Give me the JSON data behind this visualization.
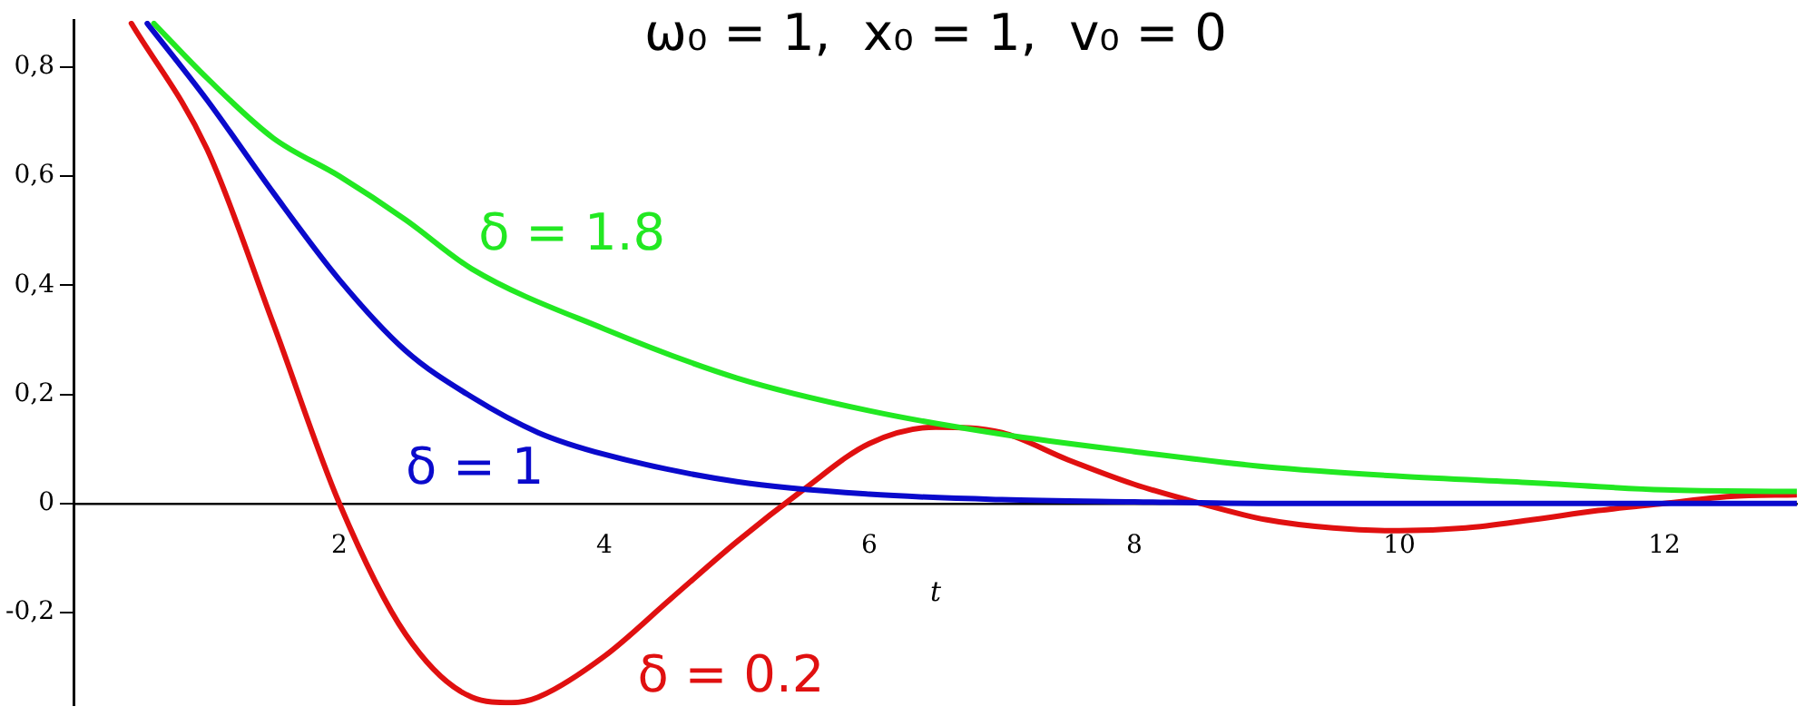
{
  "chart_data": {
    "type": "line",
    "title": "ω₀ = 1,  x₀ = 1,  v₀ = 0",
    "xlabel": "t",
    "xlim": [
      0,
      13
    ],
    "xticks": [
      2,
      4,
      6,
      8,
      10,
      12
    ],
    "ylim": [
      -0.37,
      0.885
    ],
    "yticks": [
      {
        "value": -0.2,
        "label": "-0,2"
      },
      {
        "value": 0,
        "label": "0"
      },
      {
        "value": 0.2,
        "label": "0,2"
      },
      {
        "value": 0.4,
        "label": "0,4"
      },
      {
        "value": 0.6,
        "label": "0,6"
      },
      {
        "value": 0.8,
        "label": "0,8"
      }
    ],
    "grid": false,
    "legend": false,
    "marker": "none",
    "line_style": "solid",
    "series": [
      {
        "name": "δ = 1.8",
        "color": "#22e822",
        "x": [
          0.6,
          1,
          1.5,
          2,
          2.5,
          3,
          4,
          5,
          6,
          7,
          8,
          9,
          10,
          11,
          12,
          13
        ],
        "values": [
          0.88,
          0.78,
          0.67,
          0.6,
          0.52,
          0.43,
          0.32,
          0.23,
          0.17,
          0.127,
          0.095,
          0.067,
          0.05,
          0.038,
          0.025,
          0.022
        ]
      },
      {
        "name": "δ = 1",
        "color": "#0a0acc",
        "x": [
          0.55,
          1,
          1.5,
          2,
          2.5,
          3,
          3.5,
          4,
          5,
          6,
          7,
          8,
          9,
          10,
          11,
          12,
          13
        ],
        "values": [
          0.88,
          0.74,
          0.57,
          0.41,
          0.28,
          0.195,
          0.13,
          0.09,
          0.04,
          0.017,
          0.007,
          0.003,
          0,
          0,
          0,
          0,
          0
        ]
      },
      {
        "name": "δ = 0.2",
        "color": "#e01010",
        "x": [
          0.43,
          1,
          1.5,
          2,
          2.5,
          3,
          3.3,
          3.5,
          4,
          4.5,
          5,
          5.5,
          6,
          6.5,
          7,
          7.5,
          8,
          8.5,
          9,
          9.5,
          10,
          10.5,
          11,
          11.5,
          12,
          12.5,
          13
        ],
        "values": [
          0.88,
          0.65,
          0.33,
          0,
          -0.24,
          -0.355,
          -0.365,
          -0.355,
          -0.28,
          -0.175,
          -0.07,
          0.025,
          0.11,
          0.14,
          0.13,
          0.08,
          0.035,
          0,
          -0.03,
          -0.045,
          -0.05,
          -0.045,
          -0.03,
          -0.013,
          0,
          0.013,
          0.016
        ]
      }
    ]
  }
}
